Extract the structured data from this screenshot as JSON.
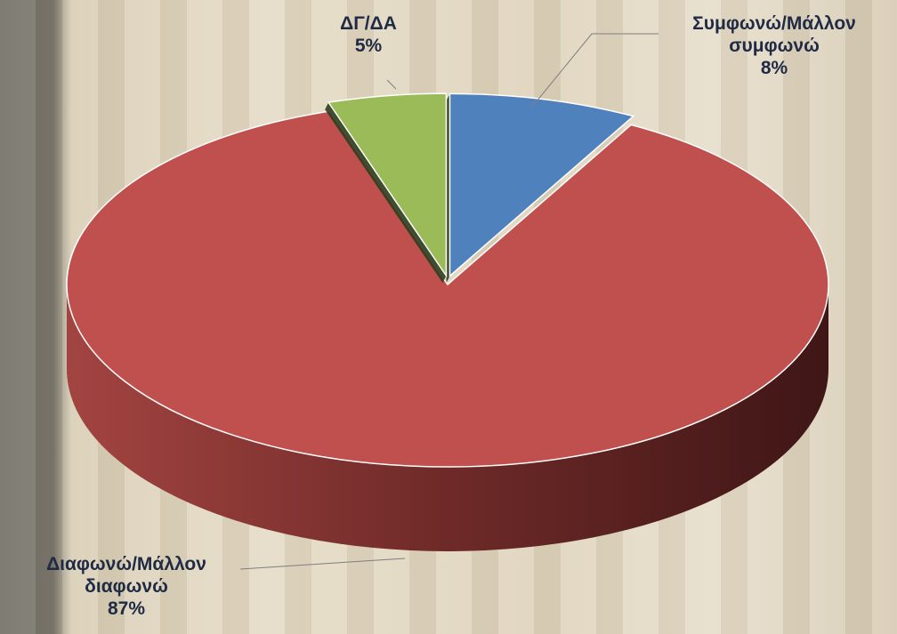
{
  "chart_data": {
    "type": "pie",
    "categories": [
      "Συμφωνώ/Μάλλον συμφωνώ",
      "Διαφωνώ/Μάλλον διαφωνώ",
      "ΔΓ/ΔΑ"
    ],
    "values": [
      8,
      87,
      5
    ],
    "value_labels": [
      "8%",
      "87%",
      "5%"
    ],
    "colors": [
      "#4f81bd",
      "#c0504d",
      "#9bbb59"
    ]
  }
}
